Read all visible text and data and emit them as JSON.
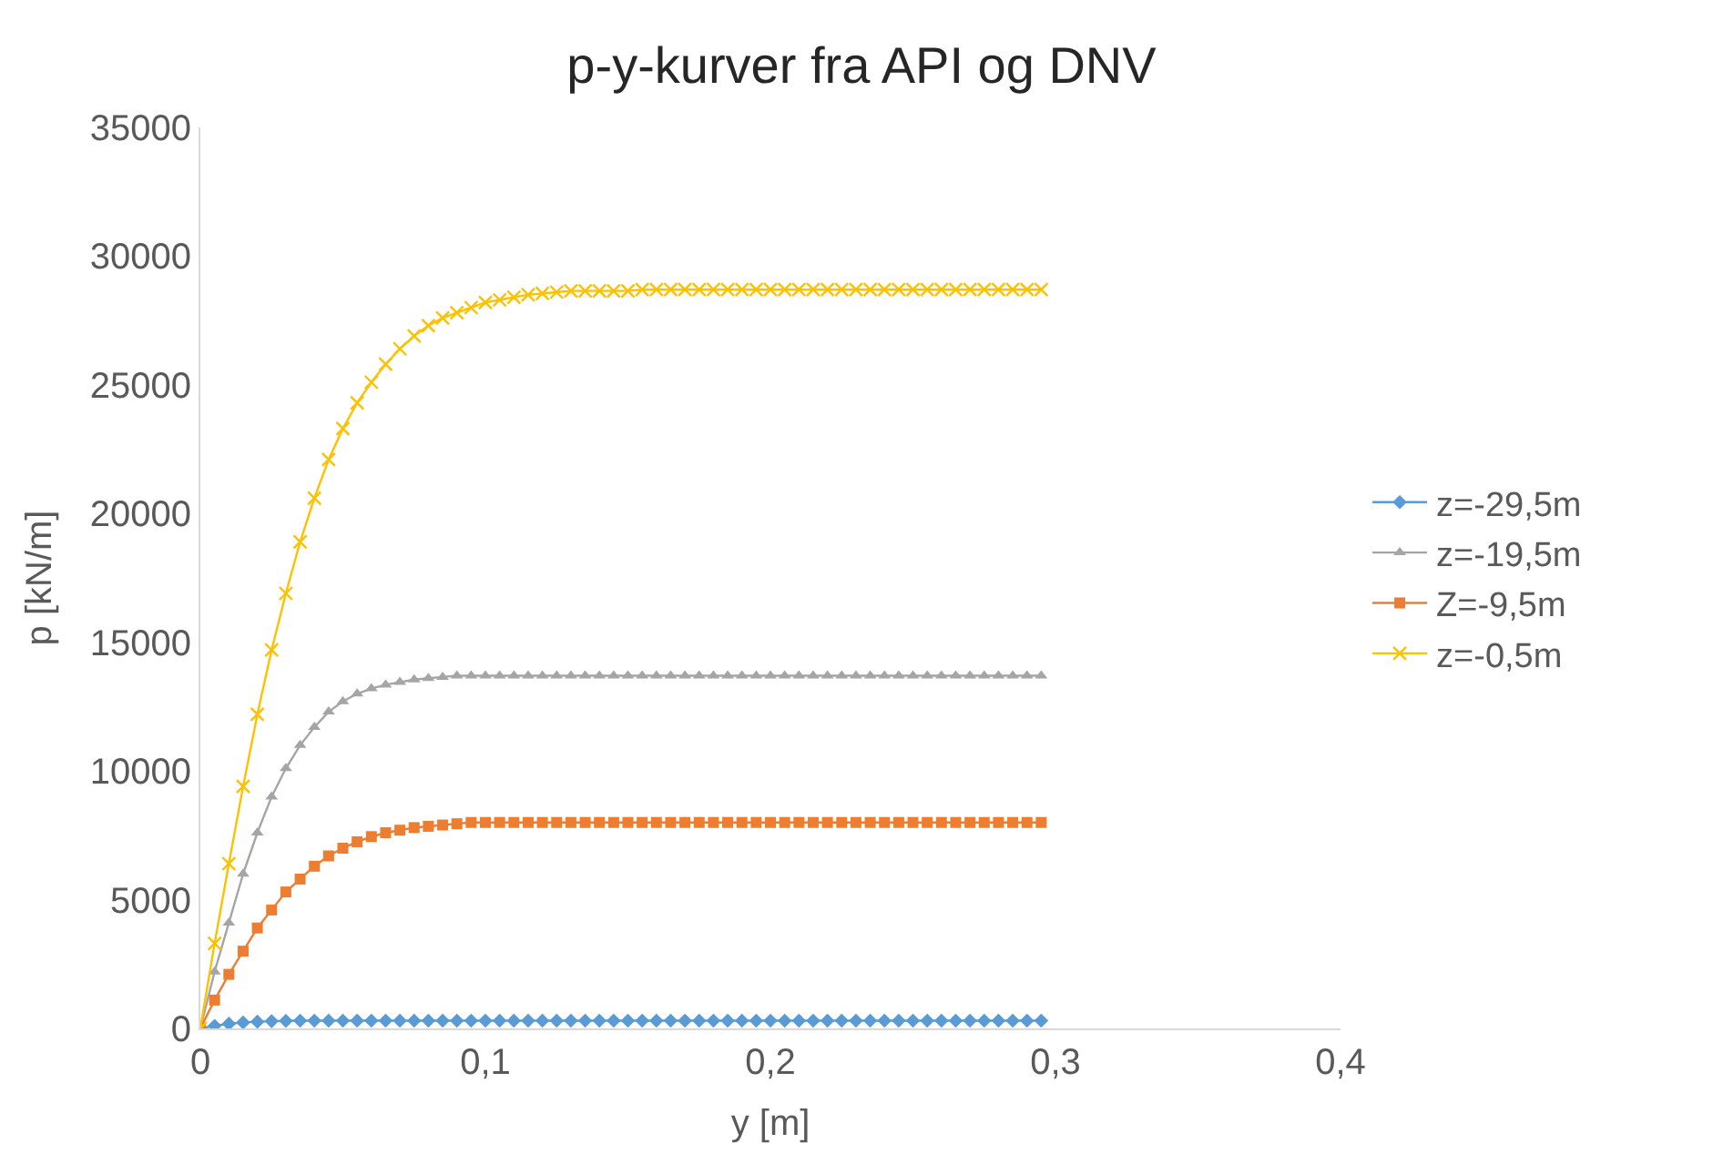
{
  "chart_data": {
    "type": "line",
    "title": "p-y-kurver fra API og DNV",
    "xlabel": "y [m]",
    "ylabel": "p [kN/m]",
    "x": [
      0,
      0.005,
      0.01,
      0.015,
      0.02,
      0.025,
      0.03,
      0.035,
      0.04,
      0.045,
      0.05,
      0.055,
      0.06,
      0.065,
      0.07,
      0.075,
      0.08,
      0.085,
      0.09,
      0.095,
      0.1,
      0.105,
      0.11,
      0.115,
      0.12,
      0.125,
      0.13,
      0.135,
      0.14,
      0.145,
      0.15,
      0.155,
      0.16,
      0.165,
      0.17,
      0.175,
      0.18,
      0.185,
      0.19,
      0.195,
      0.2,
      0.205,
      0.21,
      0.215,
      0.22,
      0.225,
      0.23,
      0.235,
      0.24,
      0.245,
      0.25,
      0.255,
      0.26,
      0.265,
      0.27,
      0.275,
      0.28,
      0.285,
      0.29,
      0.295
    ],
    "series": [
      {
        "name": "z=-29,5m",
        "color": "#5b9bd5",
        "marker": "diamond",
        "values": [
          0,
          100,
          180,
          230,
          260,
          280,
          290,
          300,
          300,
          300,
          300,
          300,
          300,
          300,
          300,
          300,
          300,
          300,
          300,
          300,
          300,
          300,
          300,
          300,
          300,
          300,
          300,
          300,
          300,
          300,
          300,
          300,
          300,
          300,
          300,
          300,
          300,
          300,
          300,
          300,
          300,
          300,
          300,
          300,
          300,
          300,
          300,
          300,
          300,
          300,
          300,
          300,
          300,
          300,
          300,
          300,
          300,
          300,
          300,
          300
        ]
      },
      {
        "name": "z=-19,5m",
        "color": "#a5a5a5",
        "marker": "triangle",
        "values": [
          0,
          2200,
          4100,
          6000,
          7600,
          9000,
          10100,
          11000,
          11700,
          12300,
          12700,
          13000,
          13200,
          13350,
          13450,
          13550,
          13600,
          13650,
          13700,
          13700,
          13700,
          13700,
          13700,
          13700,
          13700,
          13700,
          13700,
          13700,
          13700,
          13700,
          13700,
          13700,
          13700,
          13700,
          13700,
          13700,
          13700,
          13700,
          13700,
          13700,
          13700,
          13700,
          13700,
          13700,
          13700,
          13700,
          13700,
          13700,
          13700,
          13700,
          13700,
          13700,
          13700,
          13700,
          13700,
          13700,
          13700,
          13700,
          13700,
          13700
        ]
      },
      {
        "name": "Z=-9,5m",
        "color": "#ed7d31",
        "marker": "square",
        "values": [
          0,
          1100,
          2100,
          3000,
          3900,
          4600,
          5300,
          5800,
          6300,
          6700,
          7000,
          7250,
          7450,
          7600,
          7700,
          7800,
          7850,
          7900,
          7950,
          8000,
          8000,
          8000,
          8000,
          8000,
          8000,
          8000,
          8000,
          8000,
          8000,
          8000,
          8000,
          8000,
          8000,
          8000,
          8000,
          8000,
          8000,
          8000,
          8000,
          8000,
          8000,
          8000,
          8000,
          8000,
          8000,
          8000,
          8000,
          8000,
          8000,
          8000,
          8000,
          8000,
          8000,
          8000,
          8000,
          8000,
          8000,
          8000,
          8000,
          8000
        ]
      },
      {
        "name": "z=-0,5m",
        "color": "#ffc000",
        "marker": "cross",
        "values": [
          0,
          3300,
          6400,
          9400,
          12200,
          14700,
          16900,
          18900,
          20600,
          22100,
          23300,
          24300,
          25100,
          25800,
          26400,
          26900,
          27300,
          27600,
          27800,
          28000,
          28200,
          28300,
          28400,
          28500,
          28550,
          28600,
          28650,
          28650,
          28650,
          28650,
          28650,
          28700,
          28700,
          28700,
          28700,
          28700,
          28700,
          28700,
          28700,
          28700,
          28700,
          28700,
          28700,
          28700,
          28700,
          28700,
          28700,
          28700,
          28700,
          28700,
          28700,
          28700,
          28700,
          28700,
          28700,
          28700,
          28700,
          28700,
          28700,
          28700
        ]
      }
    ],
    "xlim": [
      0,
      0.4
    ],
    "xticks": [
      0,
      {
        "value": 0.1,
        "label": "0,1"
      },
      {
        "value": 0.2,
        "label": "0,2"
      },
      {
        "value": 0.3,
        "label": "0,3"
      },
      {
        "value": 0.4,
        "label": "0,4"
      }
    ],
    "ylim": [
      0,
      35000
    ],
    "yticks": [
      0,
      5000,
      10000,
      15000,
      20000,
      25000,
      30000,
      35000
    ],
    "legend": "right"
  }
}
